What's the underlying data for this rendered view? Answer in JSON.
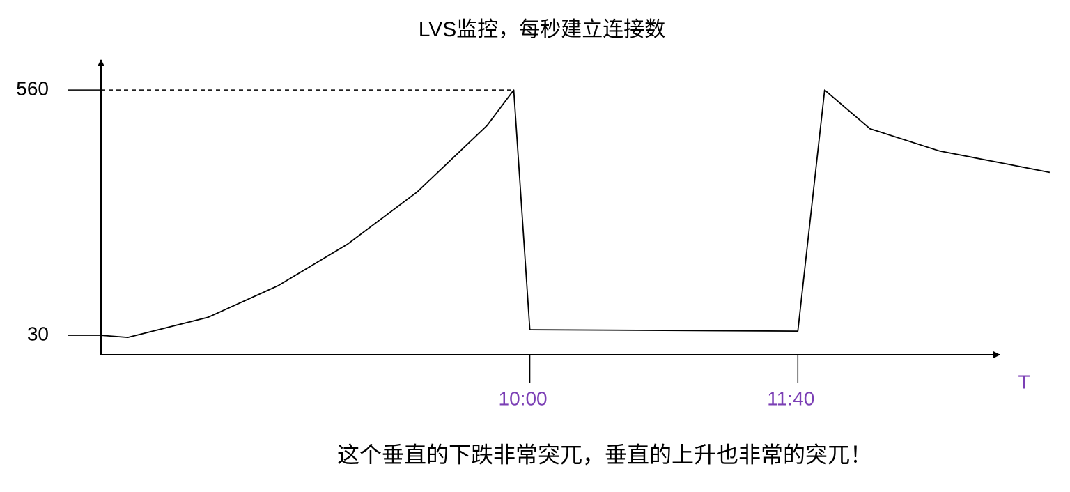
{
  "chart_data": {
    "type": "line",
    "title": "LVS监控，每秒建立连接数",
    "caption": "这个垂直的下跌非常突兀，垂直的上升也非常的突兀！",
    "x_label": "T",
    "x": [
      440,
      450,
      480,
      506,
      532,
      558,
      584,
      594,
      600,
      700,
      710,
      727,
      753,
      779,
      794
    ],
    "values": [
      30,
      25.5,
      69,
      137,
      227,
      340,
      483,
      560,
      42,
      39,
      560,
      476,
      428,
      399,
      382
    ],
    "color": "#000000",
    "xlim": [
      440,
      774
    ],
    "xticks": [
      {
        "value": 600,
        "label": "10:00"
      },
      {
        "value": 700,
        "label": "11:40"
      }
    ],
    "ylim": [
      -12,
      622
    ],
    "yticks": [
      30,
      560
    ]
  }
}
